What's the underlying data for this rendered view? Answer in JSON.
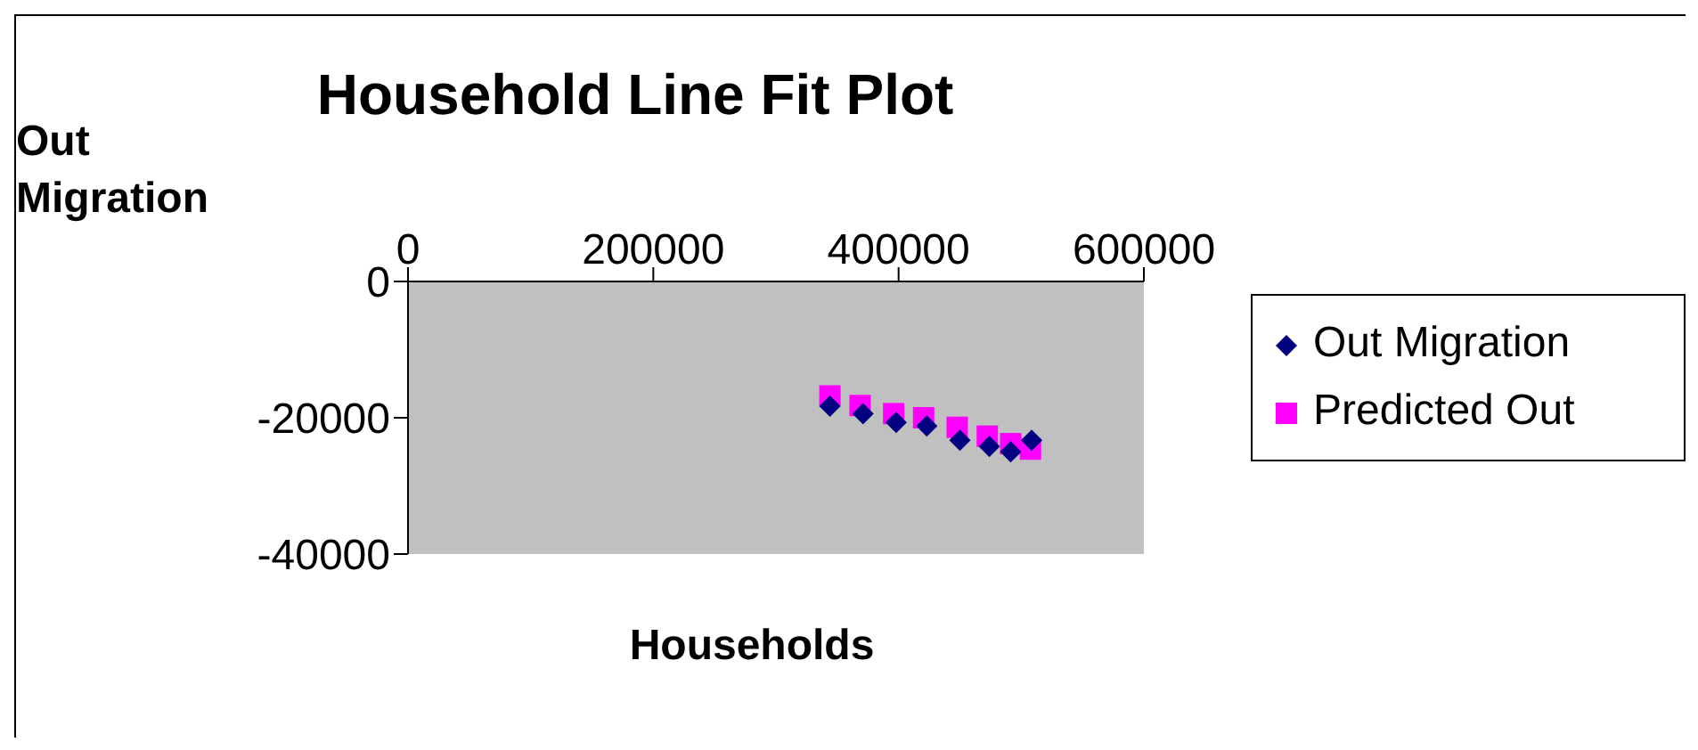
{
  "chart_data": {
    "type": "scatter",
    "title": "Household Line Fit Plot",
    "xlabel": "Households",
    "ylabel": "Out Migration",
    "xlim": [
      0,
      600000
    ],
    "xticks": [
      0,
      200000,
      400000,
      600000
    ],
    "ylim": [
      -40000,
      0
    ],
    "yticks": [
      -40000,
      -20000,
      0
    ],
    "grid": false,
    "legend": "right",
    "series": [
      {
        "name": "Out Migration",
        "color": "#000080",
        "marker": "diamond",
        "x": [
          344000,
          371000,
          398000,
          423000,
          450000,
          474000,
          491400,
          508500
        ],
        "values": [
          -18300,
          -19400,
          -20700,
          -21200,
          -23300,
          -24200,
          -25000,
          -23300
        ]
      },
      {
        "name": "Predicted Out",
        "color": "#ff00ff",
        "marker": "square",
        "x": [
          344000,
          368600,
          396000,
          420400,
          447800,
          472300,
          491400,
          507500
        ],
        "values": [
          -16800,
          -18200,
          -19400,
          -20000,
          -21400,
          -22700,
          -23800,
          -24600
        ]
      }
    ]
  }
}
